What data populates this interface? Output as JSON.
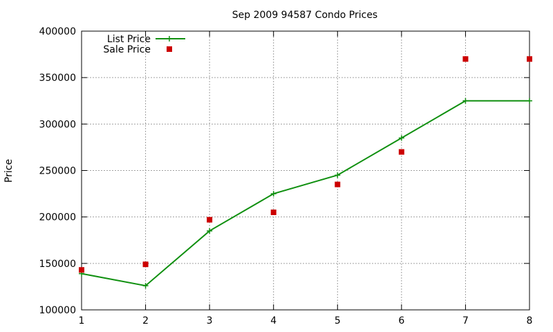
{
  "chart_data": {
    "type": "line",
    "title": "Sep 2009 94587 Condo Prices",
    "xlabel": "",
    "ylabel": "Price",
    "xlim": [
      1,
      8
    ],
    "ylim": [
      100000,
      400000
    ],
    "x_ticks": [
      1,
      2,
      3,
      4,
      5,
      6,
      7,
      8
    ],
    "y_ticks": [
      100000,
      150000,
      200000,
      250000,
      300000,
      350000,
      400000
    ],
    "grid": true,
    "legend_position": "top-left",
    "x": [
      1,
      2,
      3,
      4,
      5,
      6,
      7,
      8
    ],
    "series": [
      {
        "name": "List Price",
        "style": "line+cross",
        "color": "#109010",
        "values": [
          139000,
          126000,
          185000,
          225000,
          245000,
          285000,
          325000,
          325000
        ]
      },
      {
        "name": "Sale Price",
        "style": "square",
        "color": "#cc0000",
        "values": [
          143000,
          149000,
          197000,
          205000,
          235000,
          270000,
          370000,
          370000
        ]
      }
    ]
  }
}
